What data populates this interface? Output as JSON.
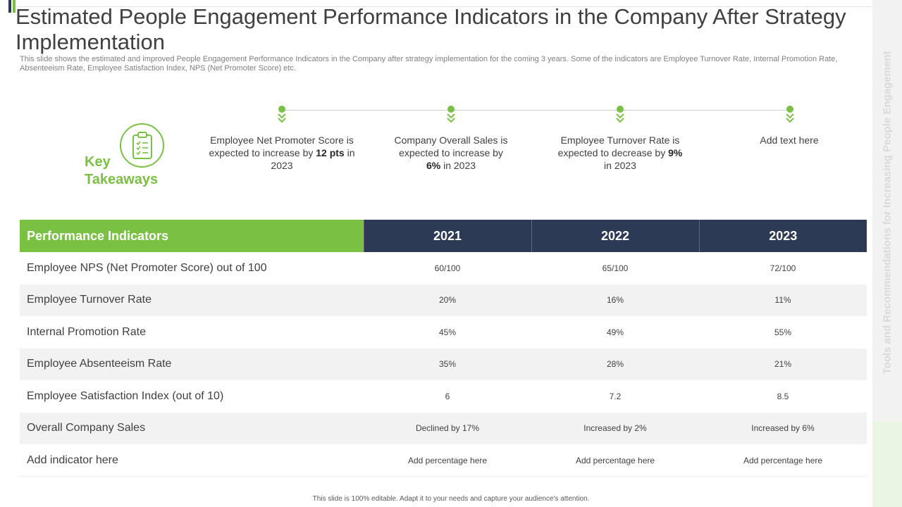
{
  "title": "Estimated People Engagement Performance Indicators in the Company After Strategy Implementation",
  "subtitle": "This slide shows the estimated and improved People Engagement Performance Indicators in the Company after strategy implementation for the coming 3 years. Some of the indicators are Employee Turnover Rate, Internal Promotion Rate, Absenteeism Rate, Employee Satisfaction Index, NPS (Net Promoter Score) etc.",
  "side_label": "Tools and Recommendations for Increasing People Engagement",
  "key_takeaways": {
    "label_line1": "Key",
    "label_line2": "Takeaways",
    "icon": "clipboard-checklist-icon",
    "items": [
      {
        "pre": "Employee Net Promoter Score is expected to increase by ",
        "bold1": "12",
        "mid": " ",
        "bold2": "pts",
        "post": " in 2023"
      },
      {
        "pre": "Company Overall Sales is expected to increase by ",
        "bold1": "6%",
        "post": " in 2023"
      },
      {
        "pre": "Employee Turnover Rate is expected to decrease by ",
        "bold1": "9%",
        "post": " in 2023"
      },
      {
        "pre": "Add text here"
      }
    ]
  },
  "table": {
    "headers": [
      "Performance Indicators",
      "2021",
      "2022",
      "2023"
    ],
    "rows": [
      {
        "name": "Employee NPS (Net Promoter Score) out of 100",
        "v2021": "60/100",
        "v2022": "65/100",
        "v2023": "72/100"
      },
      {
        "name": "Employee Turnover  Rate",
        "v2021": "20%",
        "v2022": "16%",
        "v2023": "11%"
      },
      {
        "name": "Internal  Promotion Rate",
        "v2021": "45%",
        "v2022": "49%",
        "v2023": "55%"
      },
      {
        "name": "Employee Absenteeism Rate",
        "v2021": "35%",
        "v2022": "28%",
        "v2023": "21%"
      },
      {
        "name": "Employee Satisfaction Index  (out of 10)",
        "v2021": "6",
        "v2022": "7.2",
        "v2023": "8.5"
      },
      {
        "name": "Overall  Company Sales",
        "v2021": "Declined by 17%",
        "v2022": "Increased  by 2%",
        "v2023": "Increased  by 6%"
      },
      {
        "name": "Add indicator here",
        "v2021": "Add percentage  here",
        "v2022": "Add percentage  here",
        "v2023": "Add percentage  here"
      }
    ]
  },
  "footer": "This slide is 100% editable.  Adapt it to your needs and capture your audience's attention.",
  "colors": {
    "accent_green": "#7ac143",
    "navy": "#2d3a55",
    "row_alt": "#f2f2f2"
  }
}
